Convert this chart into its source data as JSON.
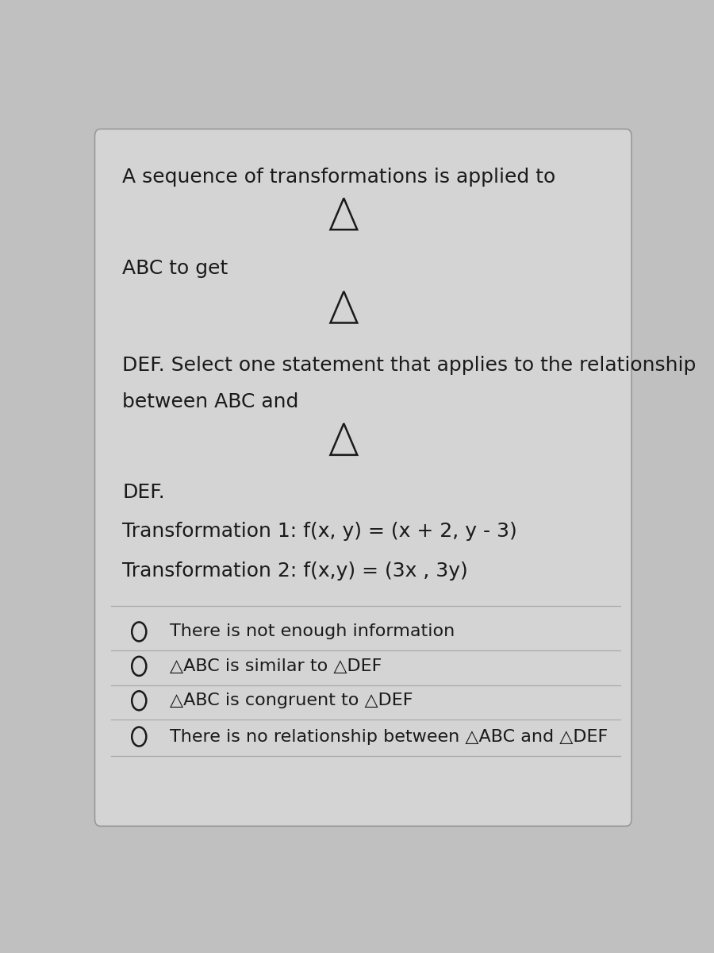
{
  "background_color": "#c0c0c0",
  "card_color": "#d4d4d4",
  "text_color": "#1a1a1a",
  "title_line1": "A sequence of transformations is applied to",
  "line_abc": "ABC to get",
  "line_def_start": "DEF. Select one statement that applies to the relationship",
  "line_def_mid": "between ABC and",
  "line_def_end": "DEF.",
  "transformation1": "Transformation 1: f(x, y) = (x + 2, y - 3)",
  "transformation2": "Transformation 2: f(x,y) = (3x , 3y)",
  "options": [
    "There is not enough information",
    "△ABC is similar to △DEF",
    "△ABC is congruent to △DEF",
    "There is no relationship between △ABC and △DEF"
  ],
  "font_size_main": 18,
  "font_size_options": 16,
  "separator_color": "#aaaaaa",
  "card_edge_color": "#999999"
}
